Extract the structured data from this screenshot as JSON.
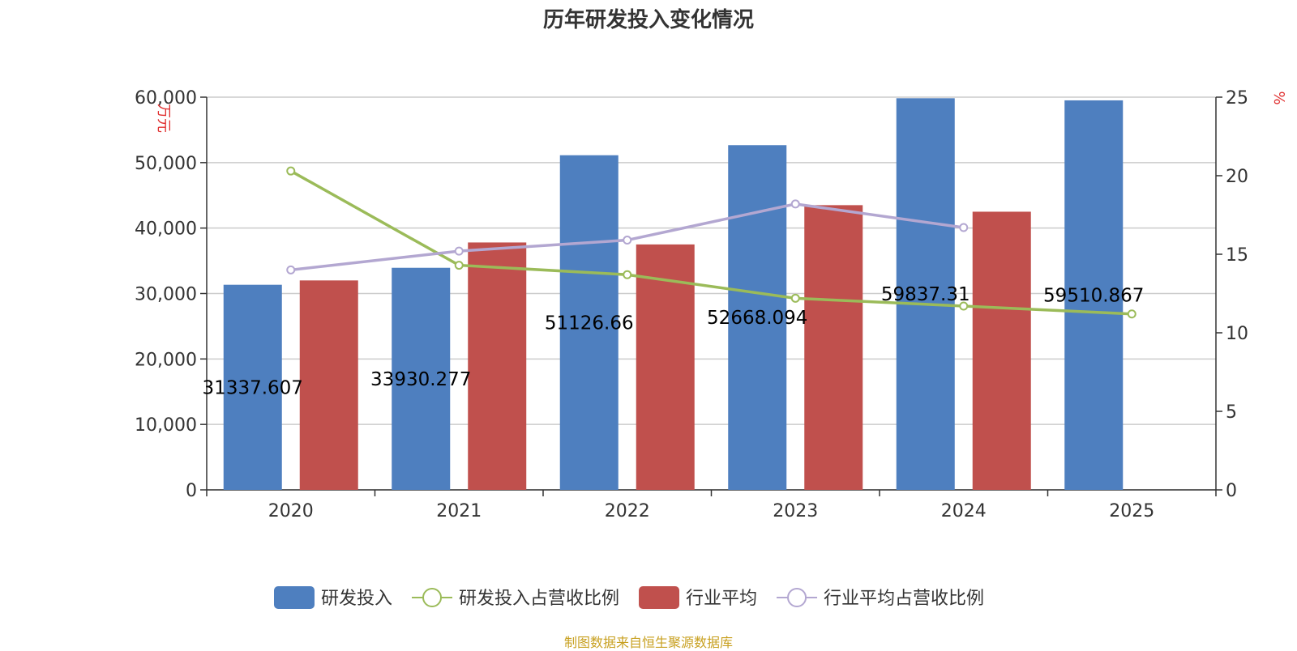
{
  "source_note": "制图数据来自恒生聚源数据库",
  "chart_data": {
    "type": "bar",
    "title": "历年研发投入变化情况",
    "categories": [
      "2020",
      "2021",
      "2022",
      "2023",
      "2024",
      "2025"
    ],
    "y_left": {
      "label": "万元",
      "ylim": [
        0,
        60000
      ],
      "ticks": [
        "0",
        "10,000",
        "20,000",
        "30,000",
        "40,000",
        "50,000",
        "60,000"
      ]
    },
    "y_right": {
      "label": "%",
      "ylim": [
        0,
        25
      ],
      "ticks": [
        "0",
        "5",
        "10",
        "15",
        "20",
        "25"
      ]
    },
    "grid": true,
    "legend_position": "bottom-center",
    "series": [
      {
        "name": "研发投入",
        "type": "bar",
        "axis": "left",
        "color": "#4e7fbf",
        "values": [
          31337.607,
          33930.277,
          51126.66,
          52668.094,
          59837.31,
          59510.867
        ],
        "labels": [
          "31337.607",
          "33930.277",
          "51126.66",
          "52668.094",
          "59837.31",
          "59510.867"
        ]
      },
      {
        "name": "研发投入占营收比例",
        "type": "line",
        "axis": "right",
        "color": "#9bbb59",
        "values": [
          20.3,
          14.3,
          13.7,
          12.2,
          11.7,
          11.2
        ]
      },
      {
        "name": "行业平均",
        "type": "bar",
        "axis": "left",
        "color": "#c0504d",
        "values": [
          32000,
          37800,
          37500,
          43500,
          42500,
          null
        ]
      },
      {
        "name": "行业平均占营收比例",
        "type": "line",
        "axis": "right",
        "color": "#b3a7d1",
        "values": [
          14.0,
          15.2,
          15.9,
          18.2,
          16.7,
          null
        ]
      }
    ]
  }
}
